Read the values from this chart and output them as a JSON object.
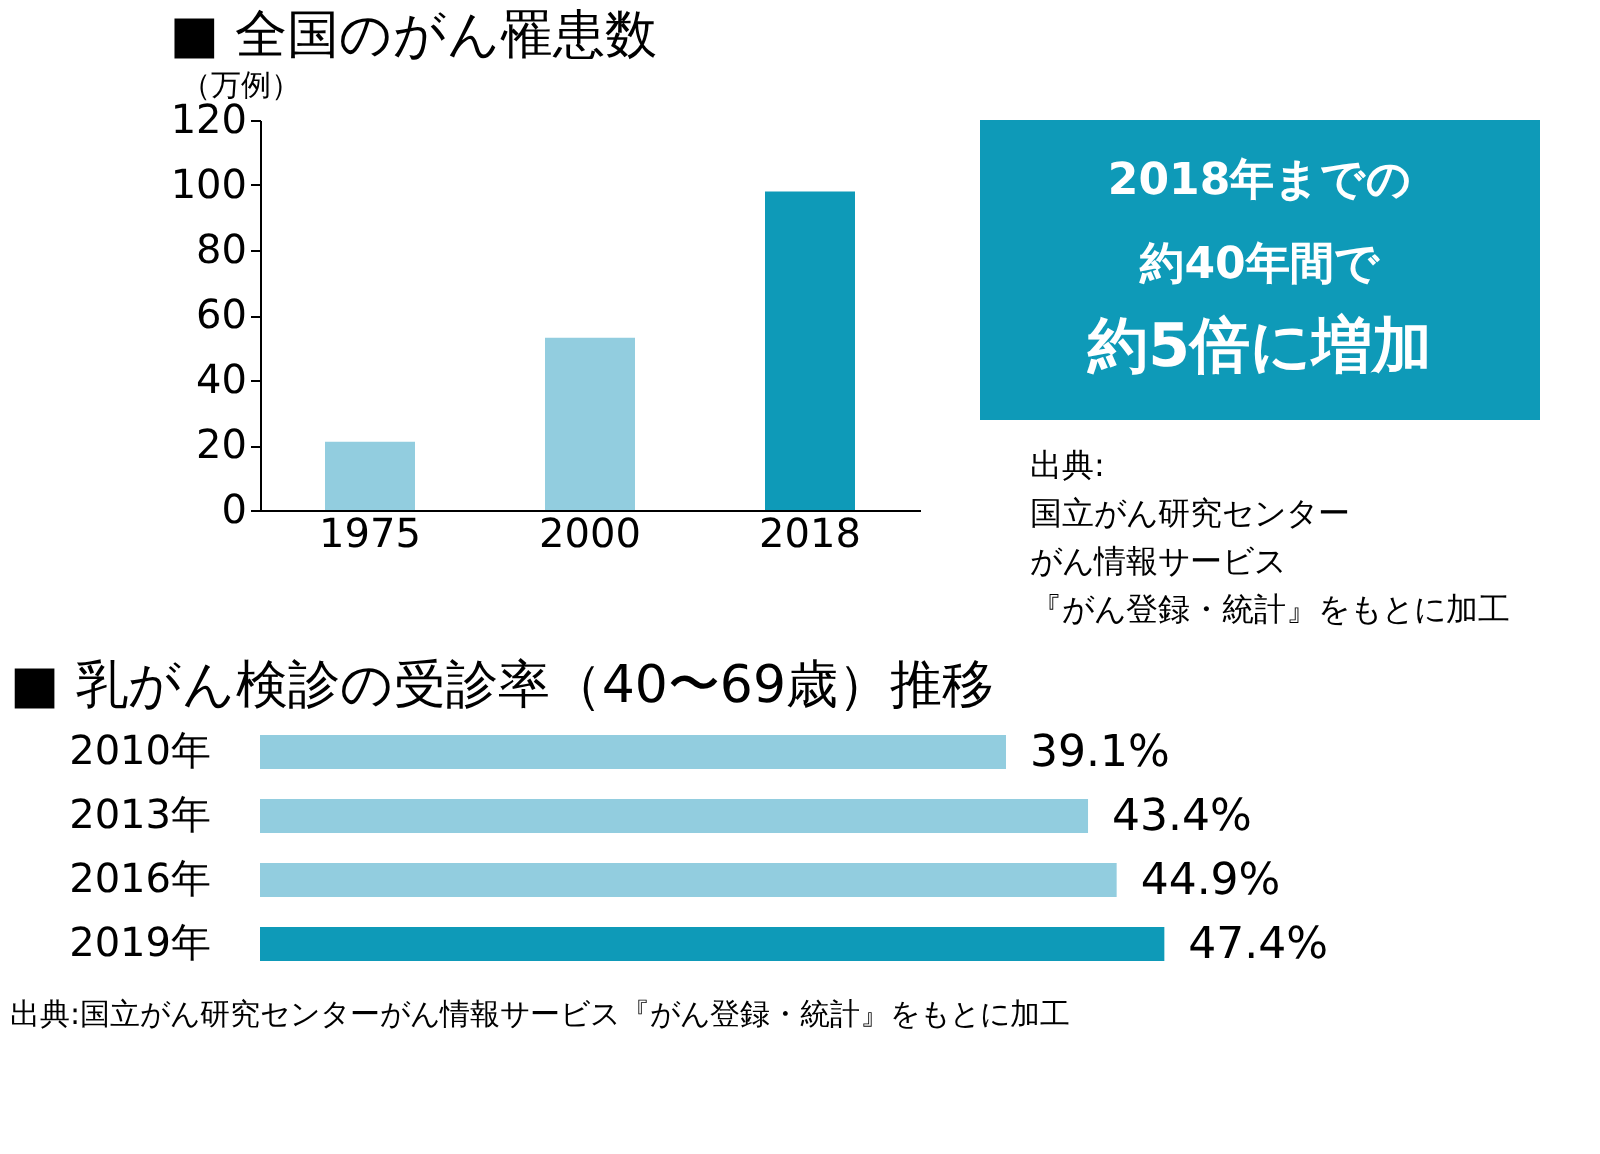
{
  "chart_data": [
    {
      "type": "bar",
      "title": "■ 全国のがん罹患数",
      "ylabel": "（万例）",
      "categories": [
        "1975",
        "2000",
        "2018"
      ],
      "values": [
        21,
        53,
        98
      ],
      "colors": [
        "#92cddf",
        "#92cddf",
        "#0e9ab8"
      ],
      "ylim": [
        0,
        120
      ],
      "yticks": [
        0,
        20,
        40,
        60,
        80,
        100,
        120
      ],
      "grid": false,
      "legend": false,
      "annotations": [
        "2018年までの",
        "約40年間で",
        "約5倍に増加",
        "出典:",
        "国立がん研究センター",
        "がん情報サービス",
        "『がん登録・統計』をもとに加工"
      ]
    },
    {
      "type": "bar",
      "orientation": "horizontal",
      "title": "■ 乳がん検診の受診率（40〜69歳）推移",
      "categories": [
        "2010年",
        "2013年",
        "2016年",
        "2019年"
      ],
      "values": [
        39.1,
        43.4,
        44.9,
        47.4
      ],
      "colors": [
        "#92cddf",
        "#92cddf",
        "#92cddf",
        "#0e9ab8"
      ],
      "data_labels": true,
      "value_labels": [
        "39.1%",
        "43.4%",
        "44.9%",
        "47.4%"
      ],
      "tick_labels": "y",
      "grid": false,
      "legend": false,
      "annotations": [
        "出典:国立がん研究センターがん情報サービス『がん登録・統計』をもとに加工"
      ]
    }
  ]
}
